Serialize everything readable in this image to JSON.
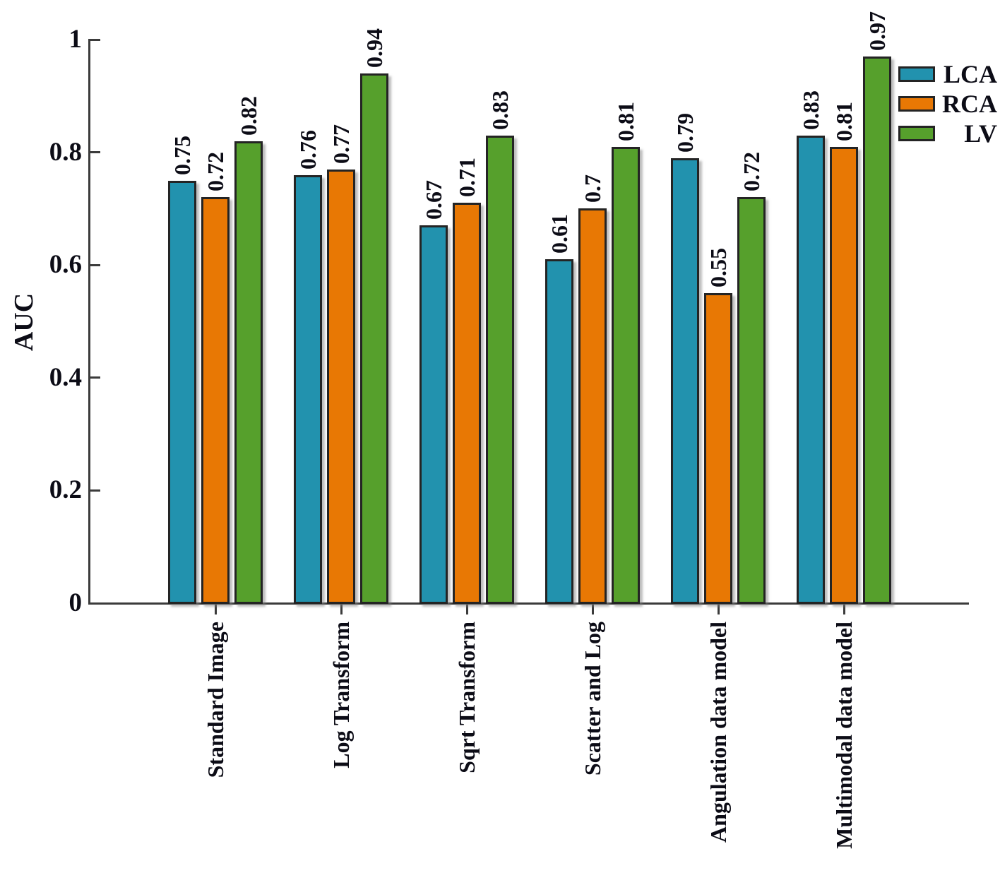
{
  "chart_data": {
    "type": "bar",
    "title": "",
    "ylabel": "AUC",
    "xlabel": "",
    "ylim": [
      0,
      1
    ],
    "yticks": [
      0,
      0.2,
      0.4,
      0.6,
      0.8,
      1
    ],
    "ytick_labels": [
      "0",
      "0.2",
      "0.4",
      "0.6",
      "0.8",
      "1"
    ],
    "grid": false,
    "legend_position": "top-right",
    "bar_value_labels_rotated": true,
    "categories": [
      "Standard Image",
      "Log Transform",
      "Sqrt Transform",
      "Scatter and Log",
      "Angulation data model",
      "Multimodal data model"
    ],
    "series": [
      {
        "name": "LCA",
        "color": "#2292ae",
        "values": [
          0.75,
          0.76,
          0.67,
          0.61,
          0.79,
          0.83
        ]
      },
      {
        "name": "RCA",
        "color": "#e87804",
        "values": [
          0.72,
          0.77,
          0.71,
          0.7,
          0.55,
          0.81
        ]
      },
      {
        "name": "LV",
        "color": "#56a02c",
        "values": [
          0.82,
          0.94,
          0.83,
          0.81,
          0.72,
          0.97
        ]
      }
    ]
  }
}
